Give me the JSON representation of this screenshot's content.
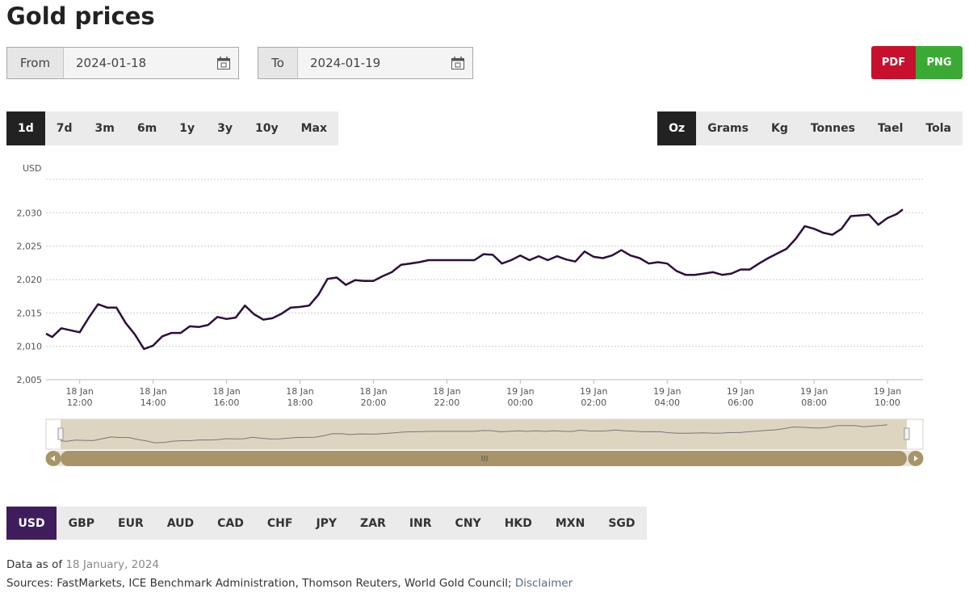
{
  "header": {
    "title": "Gold prices"
  },
  "date_range": {
    "from_label": "From",
    "from": "2024-01-18",
    "to_label": "To",
    "to": "2024-01-19"
  },
  "exports": [
    "PDF",
    "PNG"
  ],
  "periods": {
    "options": [
      "1d",
      "7d",
      "3m",
      "6m",
      "1y",
      "3y",
      "10y",
      "Max"
    ],
    "selected": 0
  },
  "units": {
    "options": [
      "Oz",
      "Grams",
      "Kg",
      "Tonnes",
      "Tael",
      "Tola"
    ],
    "selected": 0
  },
  "chart_data": {
    "type": "line",
    "y_axis_label": "USD",
    "color": "#2b0f3f",
    "x": [
      "18 Jan 11:05",
      "18 Jan 11:15",
      "18 Jan 11:30",
      "18 Jan 11:45",
      "18 Jan 12:00",
      "18 Jan 12:15",
      "18 Jan 12:30",
      "18 Jan 12:45",
      "18 Jan 13:00",
      "18 Jan 13:15",
      "18 Jan 13:30",
      "18 Jan 13:45",
      "18 Jan 14:00",
      "18 Jan 14:15",
      "18 Jan 14:30",
      "18 Jan 14:45",
      "18 Jan 15:00",
      "18 Jan 15:15",
      "18 Jan 15:30",
      "18 Jan 15:45",
      "18 Jan 16:00",
      "18 Jan 16:15",
      "18 Jan 16:30",
      "18 Jan 16:45",
      "18 Jan 17:00",
      "18 Jan 17:15",
      "18 Jan 17:30",
      "18 Jan 17:45",
      "18 Jan 18:00",
      "18 Jan 18:15",
      "18 Jan 18:30",
      "18 Jan 18:45",
      "18 Jan 19:00",
      "18 Jan 19:15",
      "18 Jan 19:30",
      "18 Jan 19:45",
      "18 Jan 20:00",
      "18 Jan 20:15",
      "18 Jan 20:30",
      "18 Jan 20:45",
      "18 Jan 21:00",
      "18 Jan 21:15",
      "18 Jan 21:30",
      "18 Jan 21:45",
      "18 Jan 22:00",
      "18 Jan 22:15",
      "18 Jan 22:30",
      "18 Jan 22:45",
      "18 Jan 23:00",
      "18 Jan 23:15",
      "18 Jan 23:30",
      "18 Jan 23:45",
      "19 Jan 00:00",
      "19 Jan 00:15",
      "19 Jan 00:30",
      "19 Jan 00:45",
      "19 Jan 01:00",
      "19 Jan 01:15",
      "19 Jan 01:30",
      "19 Jan 01:45",
      "19 Jan 02:00",
      "19 Jan 02:15",
      "19 Jan 02:30",
      "19 Jan 02:45",
      "19 Jan 03:00",
      "19 Jan 03:15",
      "19 Jan 03:30",
      "19 Jan 03:45",
      "19 Jan 04:00",
      "19 Jan 04:15",
      "19 Jan 04:30",
      "19 Jan 04:45",
      "19 Jan 05:00",
      "19 Jan 05:15",
      "19 Jan 05:30",
      "19 Jan 05:45",
      "19 Jan 06:00",
      "19 Jan 06:15",
      "19 Jan 06:30",
      "19 Jan 06:45",
      "19 Jan 07:00",
      "19 Jan 07:15",
      "19 Jan 07:30",
      "19 Jan 07:45",
      "19 Jan 08:00",
      "19 Jan 08:15",
      "19 Jan 08:30",
      "19 Jan 08:45",
      "19 Jan 09:00",
      "19 Jan 09:15",
      "19 Jan 09:30",
      "19 Jan 09:45",
      "19 Jan 10:00",
      "19 Jan 10:15",
      "19 Jan 10:25"
    ],
    "values": [
      2011.9,
      2011.4,
      2012.7,
      2012.4,
      2012.1,
      2014.3,
      2016.3,
      2015.8,
      2015.8,
      2013.5,
      2011.8,
      2009.6,
      2010.1,
      2011.5,
      2012.0,
      2012.0,
      2013.0,
      2012.9,
      2013.2,
      2014.4,
      2014.1,
      2014.3,
      2016.1,
      2014.8,
      2014.0,
      2014.2,
      2014.9,
      2015.8,
      2015.9,
      2016.1,
      2017.7,
      2020.1,
      2020.3,
      2019.2,
      2019.9,
      2019.8,
      2019.8,
      2020.5,
      2021.1,
      2022.2,
      2022.4,
      2022.6,
      2022.9,
      2022.9,
      2022.9,
      2022.9,
      2022.9,
      2022.9,
      2023.8,
      2023.7,
      2022.4,
      2022.9,
      2023.6,
      2022.9,
      2023.5,
      2022.9,
      2023.5,
      2023.0,
      2022.7,
      2024.2,
      2023.4,
      2023.2,
      2023.6,
      2024.4,
      2023.6,
      2023.2,
      2022.4,
      2022.6,
      2022.4,
      2021.3,
      2020.7,
      2020.7,
      2020.9,
      2021.1,
      2020.7,
      2020.9,
      2021.5,
      2021.5,
      2022.4,
      2023.2,
      2023.9,
      2024.6,
      2026.1,
      2028.0,
      2027.6,
      2027.0,
      2026.7,
      2027.6,
      2029.5,
      2029.6,
      2029.7,
      2028.2,
      2029.2,
      2029.8,
      2030.5
    ],
    "xlim": [
      "18 Jan 11:05",
      "19 Jan 10:58"
    ],
    "xticks": [
      {
        "value": "18 Jan 12:00",
        "label": "18 Jan\n12:00"
      },
      {
        "value": "18 Jan 14:00",
        "label": "18 Jan\n14:00"
      },
      {
        "value": "18 Jan 16:00",
        "label": "18 Jan\n16:00"
      },
      {
        "value": "18 Jan 18:00",
        "label": "18 Jan\n18:00"
      },
      {
        "value": "18 Jan 20:00",
        "label": "18 Jan\n20:00"
      },
      {
        "value": "18 Jan 22:00",
        "label": "18 Jan\n22:00"
      },
      {
        "value": "19 Jan 00:00",
        "label": "19 Jan\n00:00"
      },
      {
        "value": "19 Jan 02:00",
        "label": "19 Jan\n02:00"
      },
      {
        "value": "19 Jan 04:00",
        "label": "19 Jan\n04:00"
      },
      {
        "value": "19 Jan 06:00",
        "label": "19 Jan\n06:00"
      },
      {
        "value": "19 Jan 08:00",
        "label": "19 Jan\n08:00"
      },
      {
        "value": "19 Jan 10:00",
        "label": "19 Jan\n10:00"
      }
    ],
    "ylim": [
      2005,
      2035
    ],
    "yticks": [
      {
        "value": 2005,
        "label": "2,005"
      },
      {
        "value": 2010,
        "label": "2,010"
      },
      {
        "value": 2015,
        "label": "2,015"
      },
      {
        "value": 2020,
        "label": "2,020"
      },
      {
        "value": 2025,
        "label": "2,025"
      },
      {
        "value": 2030,
        "label": "2,030"
      }
    ],
    "grid": true
  },
  "currencies": {
    "options": [
      "USD",
      "GBP",
      "EUR",
      "AUD",
      "CAD",
      "CHF",
      "JPY",
      "ZAR",
      "INR",
      "CNY",
      "HKD",
      "MXN",
      "SGD"
    ],
    "selected": 0
  },
  "footer": {
    "data_as_of_label": "Data as of",
    "data_as_of": "18 January, 2024",
    "sources": "Sources: FastMarkets, ICE Benchmark Administration, Thomson Reuters, World Gold Council;",
    "disclaimer": "Disclaimer"
  }
}
